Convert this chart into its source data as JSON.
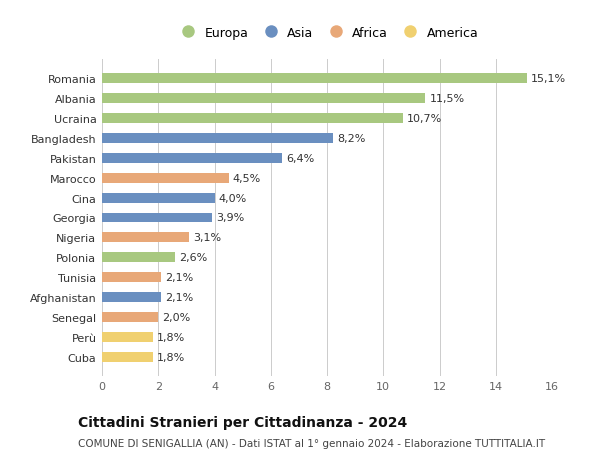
{
  "countries": [
    "Romania",
    "Albania",
    "Ucraina",
    "Bangladesh",
    "Pakistan",
    "Marocco",
    "Cina",
    "Georgia",
    "Nigeria",
    "Polonia",
    "Tunisia",
    "Afghanistan",
    "Senegal",
    "Perù",
    "Cuba"
  ],
  "values": [
    15.1,
    11.5,
    10.7,
    8.2,
    6.4,
    4.5,
    4.0,
    3.9,
    3.1,
    2.6,
    2.1,
    2.1,
    2.0,
    1.8,
    1.8
  ],
  "labels": [
    "15,1%",
    "11,5%",
    "10,7%",
    "8,2%",
    "6,4%",
    "4,5%",
    "4,0%",
    "3,9%",
    "3,1%",
    "2,6%",
    "2,1%",
    "2,1%",
    "2,0%",
    "1,8%",
    "1,8%"
  ],
  "continents": [
    "Europa",
    "Europa",
    "Europa",
    "Asia",
    "Asia",
    "Africa",
    "Asia",
    "Asia",
    "Africa",
    "Europa",
    "Africa",
    "Asia",
    "Africa",
    "America",
    "America"
  ],
  "colors": {
    "Europa": "#a8c880",
    "Asia": "#6a8fc0",
    "Africa": "#e8a878",
    "America": "#f0d070"
  },
  "legend_order": [
    "Europa",
    "Asia",
    "Africa",
    "America"
  ],
  "title": "Cittadini Stranieri per Cittadinanza - 2024",
  "subtitle": "COMUNE DI SENIGALLIA (AN) - Dati ISTAT al 1° gennaio 2024 - Elaborazione TUTTITALIA.IT",
  "xlim": [
    0,
    16
  ],
  "xticks": [
    0,
    2,
    4,
    6,
    8,
    10,
    12,
    14,
    16
  ],
  "background_color": "#ffffff",
  "grid_color": "#cccccc",
  "bar_height": 0.5,
  "label_fontsize": 8,
  "tick_fontsize": 8,
  "legend_fontsize": 9,
  "title_fontsize": 10,
  "subtitle_fontsize": 7.5
}
